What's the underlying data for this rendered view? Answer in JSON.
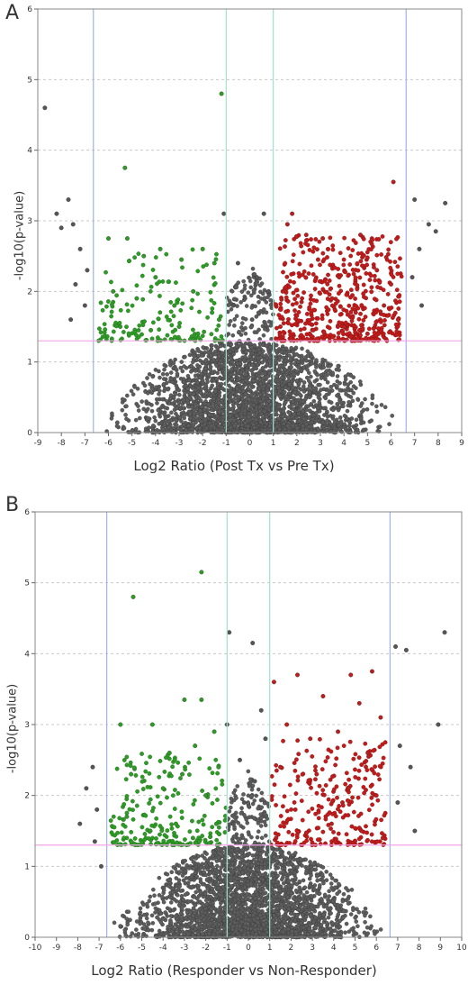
{
  "chart_data": [
    {
      "panel_label": "A",
      "type": "scatter",
      "xlabel": "Log2 Ratio (Post Tx vs Pre Tx)",
      "ylabel": "-log10(p-value)",
      "xlim": [
        -9,
        9
      ],
      "ylim": [
        0,
        6
      ],
      "xticks": [
        -9,
        -8,
        -7,
        -6,
        -5,
        -4,
        -3,
        -2,
        -1,
        0,
        1,
        2,
        3,
        4,
        5,
        6,
        7,
        8,
        9
      ],
      "yticks": [
        0,
        1,
        2,
        3,
        4,
        5,
        6
      ],
      "grid": "horizontal dashed",
      "vlines": [
        {
          "x": -6.64,
          "color": "#9fb3ea"
        },
        {
          "x": -1,
          "color": "#9ee3cf"
        },
        {
          "x": 1,
          "color": "#9ee3cf"
        },
        {
          "x": 6.64,
          "color": "#9fb3ea"
        }
      ],
      "hline": {
        "y": 1.3,
        "color": "#f2a6e6"
      },
      "colors": {
        "down": "#2e9b26",
        "up": "#bf1c1c",
        "ns": "#555555"
      },
      "series": [
        {
          "class": "down",
          "points": [
            [
              -1.2,
              4.8
            ],
            [
              -5.3,
              3.75
            ],
            [
              -6.0,
              2.75
            ],
            [
              -5.2,
              2.75
            ],
            [
              -4.5,
              2.5
            ],
            [
              -3.8,
              2.6
            ],
            [
              -2.9,
              2.45
            ],
            [
              -2.0,
              2.6
            ],
            [
              -1.5,
              2.4
            ],
            [
              -5.8,
              2.0
            ],
            [
              -4.8,
              1.9
            ],
            [
              -4.0,
              2.2
            ],
            [
              -3.2,
              1.8
            ],
            [
              -2.4,
              2.0
            ],
            [
              -1.6,
              1.7
            ],
            [
              -5.5,
              1.5
            ],
            [
              -4.2,
              1.45
            ],
            [
              -3.0,
              1.5
            ],
            [
              -2.2,
              1.4
            ],
            [
              -1.3,
              1.6
            ]
          ]
        },
        {
          "class": "up",
          "points": [
            [
              6.1,
              3.55
            ],
            [
              1.8,
              3.1
            ],
            [
              1.6,
              2.95
            ],
            [
              2.4,
              2.8
            ],
            [
              3.1,
              2.75
            ],
            [
              4.7,
              2.8
            ],
            [
              2.9,
              2.45
            ],
            [
              3.8,
              2.2
            ],
            [
              5.4,
              2.3
            ],
            [
              6.0,
              2.1
            ],
            [
              1.4,
              2.0
            ],
            [
              2.2,
              1.85
            ],
            [
              3.5,
              1.9
            ],
            [
              4.5,
              1.7
            ],
            [
              5.7,
              1.8
            ],
            [
              1.3,
              1.5
            ],
            [
              2.7,
              1.45
            ],
            [
              4.0,
              1.5
            ],
            [
              5.0,
              1.4
            ],
            [
              6.3,
              1.6
            ]
          ]
        },
        {
          "class": "ns",
          "points": [
            [
              -8.7,
              4.6
            ],
            [
              -8.2,
              3.1
            ],
            [
              -7.7,
              3.3
            ],
            [
              -7.5,
              2.95
            ],
            [
              -8.0,
              2.9
            ],
            [
              -7.2,
              2.6
            ],
            [
              -6.9,
              2.3
            ],
            [
              -7.4,
              2.1
            ],
            [
              -7.0,
              1.8
            ],
            [
              -7.6,
              1.6
            ],
            [
              7.0,
              3.3
            ],
            [
              7.6,
              2.95
            ],
            [
              8.3,
              3.25
            ],
            [
              7.9,
              2.85
            ],
            [
              7.2,
              2.6
            ],
            [
              6.9,
              2.2
            ],
            [
              7.3,
              1.8
            ],
            [
              -1.1,
              3.1
            ],
            [
              0.6,
              3.1
            ],
            [
              -0.5,
              2.4
            ],
            [
              0.3,
              2.2
            ],
            [
              -0.2,
              1.9
            ],
            [
              0.1,
              1.6
            ],
            [
              -0.7,
              1.8
            ],
            [
              0.8,
              2.0
            ]
          ]
        }
      ]
    },
    {
      "panel_label": "B",
      "type": "scatter",
      "xlabel": "Log2 Ratio (Responder vs Non-Responder)",
      "ylabel": "-log10(p-value)",
      "xlim": [
        -10,
        10
      ],
      "ylim": [
        0,
        6
      ],
      "xticks": [
        -10,
        -9,
        -8,
        -7,
        -6,
        -5,
        -4,
        -3,
        -2,
        -1,
        0,
        1,
        2,
        3,
        4,
        5,
        6,
        7,
        8,
        9,
        10
      ],
      "yticks": [
        0,
        1,
        2,
        3,
        4,
        5,
        6
      ],
      "grid": "horizontal dashed",
      "vlines": [
        {
          "x": -6.64,
          "color": "#9fb3ea"
        },
        {
          "x": -1,
          "color": "#9ee3cf"
        },
        {
          "x": 1,
          "color": "#9ee3cf"
        },
        {
          "x": 6.64,
          "color": "#9fb3ea"
        }
      ],
      "hline": {
        "y": 1.3,
        "color": "#f2a6e6"
      },
      "colors": {
        "down": "#2e9b26",
        "up": "#bf1c1c",
        "ns": "#555555"
      },
      "series": [
        {
          "class": "down",
          "points": [
            [
              -2.2,
              5.15
            ],
            [
              -5.4,
              4.8
            ],
            [
              -3.0,
              3.35
            ],
            [
              -2.2,
              3.35
            ],
            [
              -6.0,
              3.0
            ],
            [
              -4.5,
              3.0
            ],
            [
              -3.7,
              2.6
            ],
            [
              -2.5,
              2.7
            ],
            [
              -1.6,
              2.9
            ],
            [
              -5.5,
              2.3
            ],
            [
              -4.0,
              2.1
            ],
            [
              -3.1,
              2.3
            ],
            [
              -2.0,
              2.0
            ],
            [
              -1.4,
              2.4
            ],
            [
              -5.7,
              1.7
            ],
            [
              -4.6,
              1.5
            ],
            [
              -3.4,
              1.6
            ],
            [
              -2.6,
              1.4
            ],
            [
              -1.5,
              1.6
            ]
          ]
        },
        {
          "class": "up",
          "points": [
            [
              5.8,
              3.75
            ],
            [
              4.8,
              3.7
            ],
            [
              2.3,
              3.7
            ],
            [
              1.2,
              3.6
            ],
            [
              3.5,
              3.4
            ],
            [
              5.2,
              3.3
            ],
            [
              6.2,
              3.1
            ],
            [
              1.8,
              3.0
            ],
            [
              2.9,
              2.8
            ],
            [
              4.2,
              2.9
            ],
            [
              5.6,
              2.6
            ],
            [
              1.5,
              2.4
            ],
            [
              3.2,
              2.3
            ],
            [
              4.7,
              2.1
            ],
            [
              6.0,
              2.0
            ],
            [
              2.2,
              1.8
            ],
            [
              3.9,
              1.6
            ],
            [
              5.3,
              1.5
            ],
            [
              1.3,
              1.4
            ],
            [
              6.3,
              1.4
            ]
          ]
        },
        {
          "class": "ns",
          "points": [
            [
              -7.3,
              2.4
            ],
            [
              -7.6,
              2.1
            ],
            [
              -7.1,
              1.8
            ],
            [
              -7.9,
              1.6
            ],
            [
              -7.2,
              1.35
            ],
            [
              -6.9,
              1.0
            ],
            [
              6.9,
              4.1
            ],
            [
              7.4,
              4.05
            ],
            [
              9.2,
              4.3
            ],
            [
              8.9,
              3.0
            ],
            [
              7.1,
              2.7
            ],
            [
              7.6,
              2.4
            ],
            [
              7.0,
              1.9
            ],
            [
              7.8,
              1.5
            ],
            [
              -0.9,
              4.3
            ],
            [
              0.2,
              4.15
            ],
            [
              -1.0,
              3.0
            ],
            [
              0.6,
              3.2
            ],
            [
              -0.4,
              2.5
            ],
            [
              0.3,
              2.2
            ],
            [
              -0.2,
              1.9
            ],
            [
              0.8,
              2.8
            ],
            [
              -0.7,
              1.6
            ]
          ]
        }
      ]
    }
  ]
}
